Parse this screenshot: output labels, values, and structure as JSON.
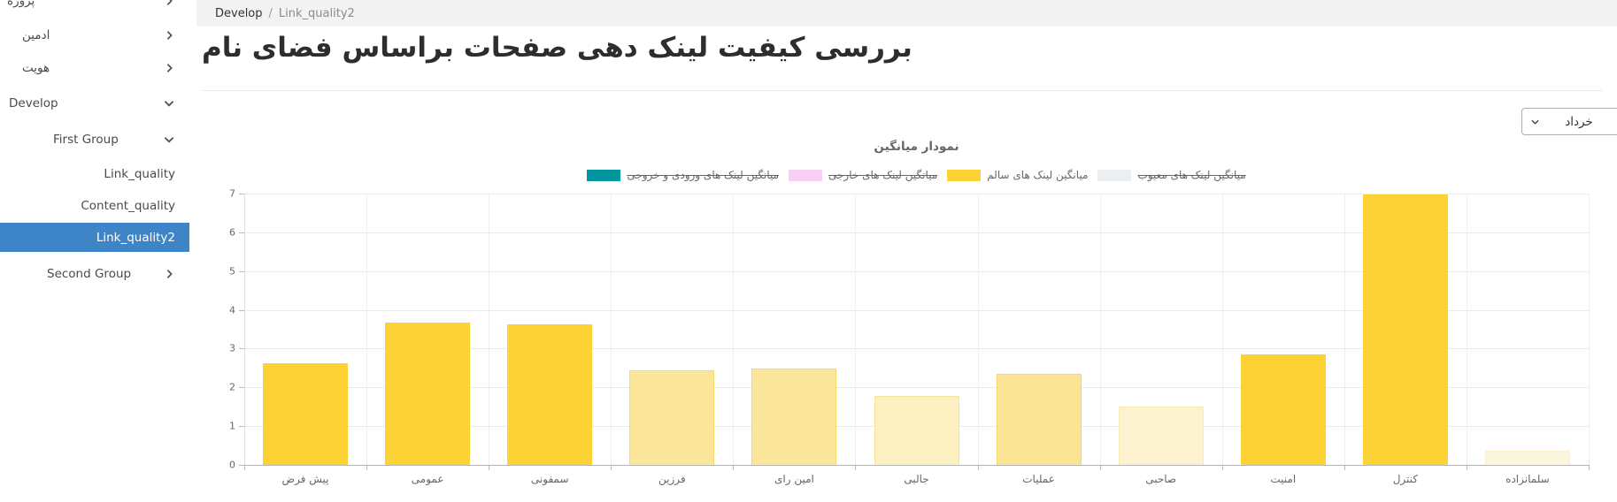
{
  "sidebar": {
    "selected_bg": "#3D85C6",
    "items": [
      {
        "label": "پروژه",
        "level": 1,
        "chevron": "right",
        "selected": false
      },
      {
        "label": "ادمین",
        "level": 1,
        "chevron": "right",
        "selected": false
      },
      {
        "label": "هویت",
        "level": 1,
        "chevron": "right",
        "selected": false
      },
      {
        "label": "Develop",
        "level": 1,
        "chevron": "down",
        "selected": false
      },
      {
        "label": "First Group",
        "level": 2,
        "chevron": "down",
        "selected": false
      },
      {
        "label": "Link_quality",
        "level": 3,
        "chevron": "none",
        "selected": false
      },
      {
        "label": "Content_quality",
        "level": 3,
        "chevron": "none",
        "selected": false
      },
      {
        "label": "Link_quality2",
        "level": 3,
        "chevron": "none",
        "selected": true
      },
      {
        "label": "Second Group",
        "level": 2,
        "chevron": "right",
        "selected": false
      }
    ]
  },
  "breadcrumb": {
    "section": "Develop",
    "separator": "/",
    "current": "Link_quality2"
  },
  "page": {
    "title": "بررسی کیفیت لینک دهی صفحات براساس فضای نام"
  },
  "filter": {
    "selected": "خرداد"
  },
  "chart_data": {
    "type": "bar",
    "title": "نمودار میانگین",
    "categories": [
      "پیش فرض",
      "عمومی",
      "سمفونی",
      "فرزین",
      "امین رای",
      "جالبی",
      "عملیات",
      "صاحبی",
      "امنیت",
      "کنترل",
      "سلمانزاده"
    ],
    "series": [
      {
        "name": "میانگین لینک های ورودی و خروجی",
        "color": "#0096A0",
        "hidden": true,
        "values": []
      },
      {
        "name": "میانگین لینک های خارجی",
        "color": "#F9CFF5",
        "hidden": true,
        "values": []
      },
      {
        "name": "میانگین لینک های سالم",
        "color": "#FDD234",
        "hidden": false,
        "values": [
          2.62,
          3.67,
          3.62,
          2.45,
          2.48,
          1.78,
          2.35,
          1.5,
          2.85,
          6.97,
          0.36
        ],
        "bar_colors": [
          "#FDD234",
          "#FDD234",
          "#FDD234",
          "#FBE69A",
          "#FBE69A",
          "#FCEFC0",
          "#FBE493",
          "#FDF3D1",
          "#FDD234",
          "#FDD234",
          "#FDF6DF"
        ],
        "border_colors": [
          "#FDD234",
          "#FDD234",
          "#FDD234",
          "#F6D96E",
          "#F6D96E",
          "#F7E39A",
          "#F6D76A",
          "#F9EAB4",
          "#FDD234",
          "#FDD234",
          "#FAF0CC"
        ]
      },
      {
        "name": "میانگین لینک های معیوب",
        "color": "#ECEFF1",
        "hidden": true,
        "values": []
      }
    ],
    "ylim": [
      0,
      7
    ],
    "yticks": [
      "0",
      "1",
      "2",
      "3",
      "4",
      "5",
      "6",
      "7"
    ],
    "grid": true,
    "legend_position": "top"
  }
}
